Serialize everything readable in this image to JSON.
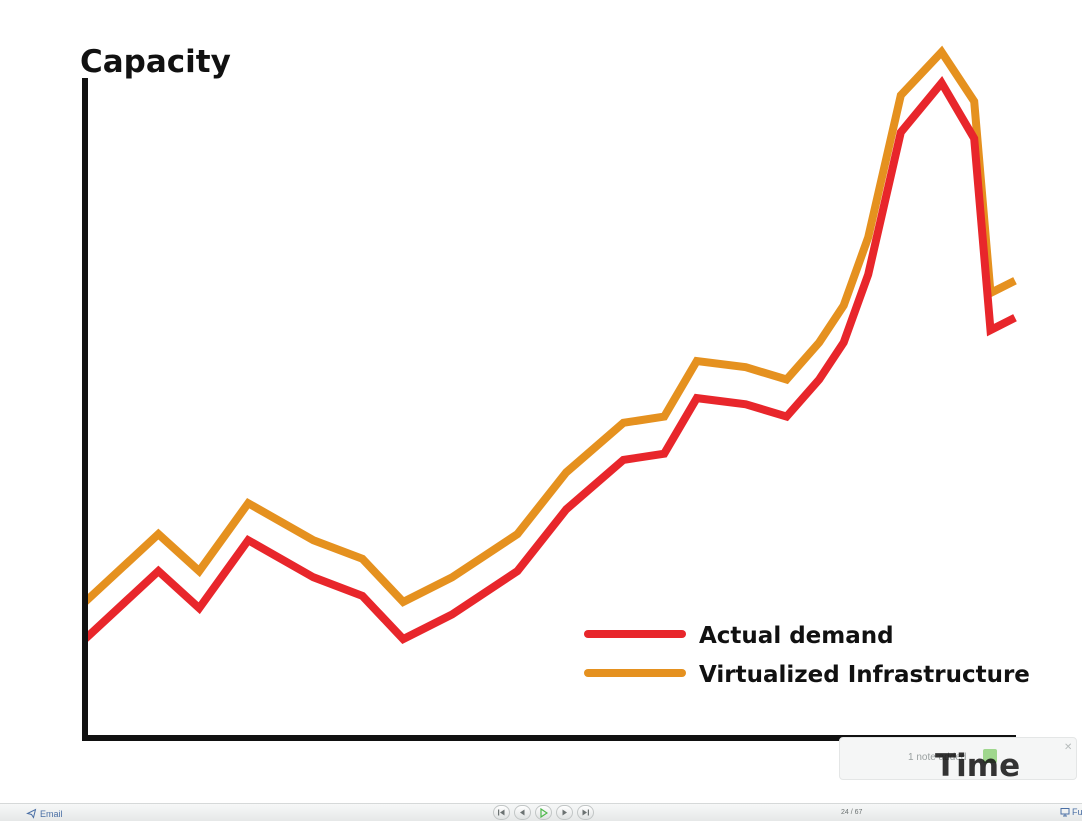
{
  "slide": {
    "y_axis_title": "Capacity",
    "x_axis_title": "Time",
    "legend": [
      {
        "label": "Actual demand",
        "color": "#e8262b"
      },
      {
        "label": "Virtualized Infrastructure",
        "color": "#e5911f"
      }
    ]
  },
  "chart_data": {
    "type": "line",
    "title": "",
    "xlabel": "Time",
    "ylabel": "Capacity",
    "grid": false,
    "legend_position": "bottom-right",
    "axis_color": "#111111",
    "series": [
      {
        "name": "Actual demand",
        "color": "#e8262b",
        "x": [
          0,
          0.09,
          0.14,
          0.2,
          0.28,
          0.34,
          0.39,
          0.45,
          0.53,
          0.59,
          0.66,
          0.71,
          0.75,
          0.81,
          0.86,
          0.9,
          0.93,
          0.96,
          1.0,
          1.05,
          1.09,
          1.11,
          1.14
        ],
        "values": [
          0.16,
          0.27,
          0.21,
          0.32,
          0.26,
          0.23,
          0.16,
          0.2,
          0.27,
          0.37,
          0.45,
          0.46,
          0.55,
          0.54,
          0.52,
          0.58,
          0.64,
          0.75,
          0.98,
          1.06,
          0.97,
          0.66,
          0.68
        ]
      },
      {
        "name": "Virtualized Infrastructure",
        "color": "#e5911f",
        "x": [
          0,
          0.09,
          0.14,
          0.2,
          0.28,
          0.34,
          0.39,
          0.45,
          0.53,
          0.59,
          0.66,
          0.71,
          0.75,
          0.81,
          0.86,
          0.9,
          0.93,
          0.96,
          1.0,
          1.05,
          1.09,
          1.11,
          1.14
        ],
        "values": [
          0.22,
          0.33,
          0.27,
          0.38,
          0.32,
          0.29,
          0.22,
          0.26,
          0.33,
          0.43,
          0.51,
          0.52,
          0.61,
          0.6,
          0.58,
          0.64,
          0.7,
          0.81,
          1.04,
          1.11,
          1.03,
          0.72,
          0.74
        ]
      }
    ]
  },
  "note_popup": {
    "text": "1 note added"
  },
  "toolbar": {
    "email_label": "Email",
    "page_counter": "24 / 67",
    "fullscreen_label": "Fu",
    "nav_icons": [
      "first-slide-icon",
      "previous-slide-icon",
      "play-icon",
      "next-slide-icon",
      "last-slide-icon"
    ]
  }
}
